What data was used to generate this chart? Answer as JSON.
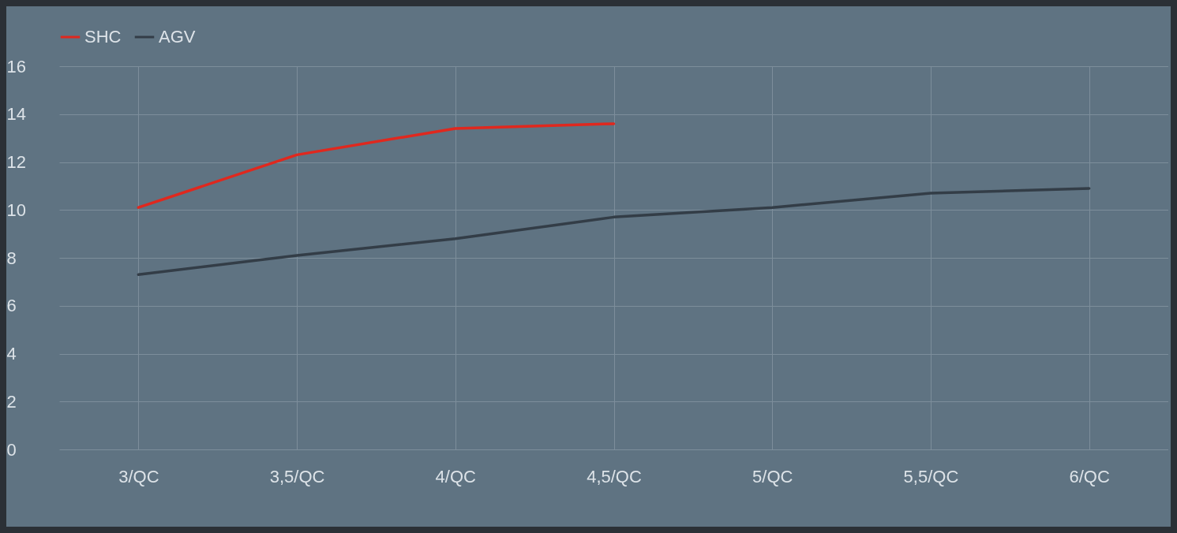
{
  "chart_data": {
    "type": "line",
    "categories": [
      "3/QC",
      "3,5/QC",
      "4/QC",
      "4,5/QC",
      "5/QC",
      "5,5/QC",
      "6/QC"
    ],
    "series": [
      {
        "name": "SHC",
        "color": "#e0281e",
        "values": [
          10.1,
          12.3,
          13.4,
          13.6,
          null,
          null,
          null
        ]
      },
      {
        "name": "AGV",
        "color": "#333d47",
        "values": [
          7.3,
          8.1,
          8.8,
          9.7,
          10.1,
          10.7,
          10.9
        ]
      }
    ],
    "ylim": [
      0,
      16
    ],
    "yticks": [
      0,
      2,
      4,
      6,
      8,
      10,
      12,
      14,
      16
    ],
    "grid": true,
    "legend": "top",
    "line_style": "solid",
    "marker": "none"
  }
}
